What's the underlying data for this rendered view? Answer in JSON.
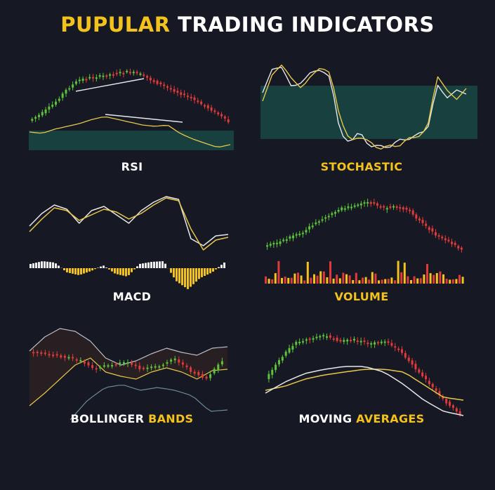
{
  "title": {
    "part1": "PUPULAR",
    "part2": "TRADING INDICATORS"
  },
  "panels": {
    "rsi": {
      "label": "RSI"
    },
    "stochastic": {
      "label": "STOCHASTIC"
    },
    "macd": {
      "label": "MACD"
    },
    "volume": {
      "label": "VOLUME"
    },
    "bollinger": {
      "label_white": "BOLLINGER",
      "label_accent": "BANDS"
    },
    "moving_averages": {
      "label_white": "MOVING",
      "label_accent": "AVERAGES"
    }
  },
  "colors": {
    "background": "#161823",
    "accent": "#f4c21d",
    "bullish": "#5cc43c",
    "bearish": "#e23a3a",
    "zone": "#17403f",
    "line_light": "#e7e7ea",
    "line_gold": "#e8c74a"
  }
}
